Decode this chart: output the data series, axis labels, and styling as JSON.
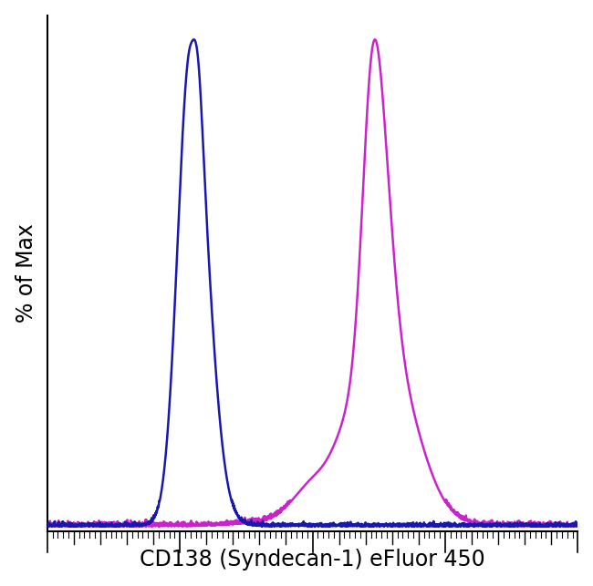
{
  "title": "",
  "xlabel": "CD138 (Syndecan-1) eFluor 450",
  "ylabel": "% of Max",
  "xlabel_fontsize": 17,
  "ylabel_fontsize": 17,
  "background_color": "#ffffff",
  "line_color_blue": "#1818b0",
  "line_color_pink": "#cc22cc",
  "xlim": [
    0,
    1
  ],
  "ylim": [
    -0.01,
    1.05
  ],
  "line_width": 1.8,
  "spine_linewidth": 1.5
}
